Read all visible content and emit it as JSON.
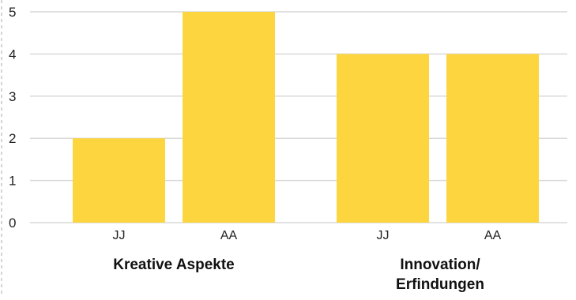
{
  "chart_data": {
    "type": "bar",
    "title": "",
    "xlabel": "",
    "ylabel": "",
    "ylim": [
      0,
      5
    ],
    "yticks": [
      0,
      1,
      2,
      3,
      4,
      5
    ],
    "grid": true,
    "legend": "none",
    "bar_color": "#FCD53F",
    "groups": [
      {
        "label_lines": [
          "Kreative Aspekte"
        ],
        "categories": [
          "JJ",
          "AA"
        ],
        "values": [
          2,
          5
        ]
      },
      {
        "label_lines": [
          "Innovation/",
          "Erfindungen"
        ],
        "categories": [
          "JJ",
          "AA"
        ],
        "values": [
          4,
          4
        ]
      }
    ]
  }
}
